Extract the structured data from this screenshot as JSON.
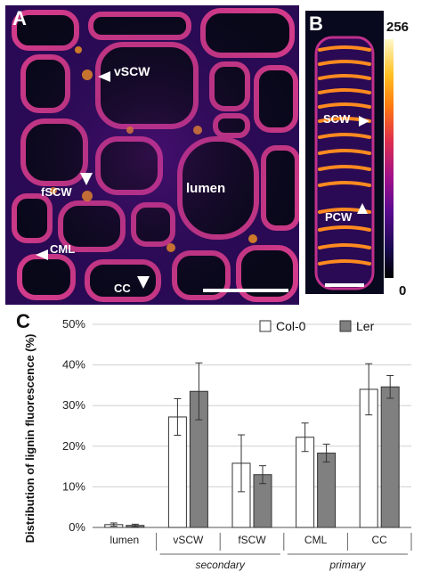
{
  "panel_a": {
    "letter": "A",
    "labels": {
      "vscw": "vSCW",
      "lumen": "lumen",
      "fscw": "fSCW",
      "cml": "CML",
      "cc": "CC"
    }
  },
  "panel_b": {
    "letter": "B",
    "labels": {
      "scw": "SCW",
      "pcw": "PCW"
    }
  },
  "colorbar": {
    "max_label": "256",
    "min_label": "0"
  },
  "panel_c": {
    "letter": "C"
  },
  "chart_data": {
    "type": "bar",
    "categories": [
      "lumen",
      "vSCW",
      "fSCW",
      "CML",
      "CC"
    ],
    "groups": [
      {
        "label": "secondary",
        "categories": [
          "vSCW",
          "fSCW"
        ]
      },
      {
        "label": "primary",
        "categories": [
          "CML",
          "CC"
        ]
      }
    ],
    "series": [
      {
        "name": "Col-0",
        "color": "#ffffff",
        "values": [
          0.7,
          27.2,
          15.8,
          22.2,
          34.0
        ],
        "errors": [
          0.4,
          4.5,
          7.0,
          3.5,
          6.3
        ]
      },
      {
        "name": "Ler",
        "color": "#808080",
        "values": [
          0.5,
          33.5,
          13.0,
          18.3,
          34.6
        ],
        "errors": [
          0.3,
          7.0,
          2.2,
          2.2,
          2.8
        ]
      }
    ],
    "ylabel": "Distribution of lignin fluorescence (%)",
    "ylim": [
      0,
      50
    ],
    "yticks": [
      "0%",
      "10%",
      "20%",
      "30%",
      "40%",
      "50%"
    ],
    "legend_position": "top-right"
  }
}
